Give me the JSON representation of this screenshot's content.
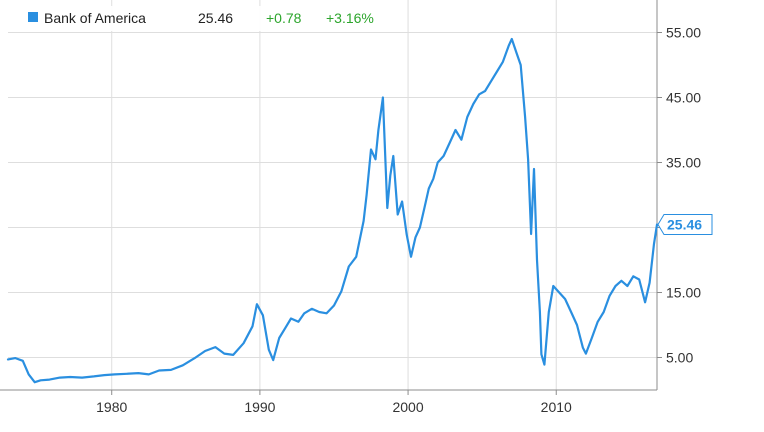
{
  "legend": {
    "series_name": "Bank of America",
    "last_value": "25.46",
    "change_abs": "+0.78",
    "change_pct": "+3.16%"
  },
  "colors": {
    "series": "#2a8fe0",
    "positive": "#2ca52c",
    "grid": "#dedede",
    "axis": "#8c8c8c",
    "text": "#333333"
  },
  "chart_data": {
    "type": "line",
    "title": "",
    "xlabel": "",
    "ylabel": "",
    "xlim": [
      1973.0,
      2016.8
    ],
    "ylim": [
      0,
      60
    ],
    "x_ticks": [
      1980,
      1990,
      2000,
      2010
    ],
    "x_tick_labels": [
      "1980",
      "1990",
      "2000",
      "2010"
    ],
    "y_ticks": [
      5,
      15,
      25,
      35,
      45,
      55
    ],
    "y_tick_labels": [
      "5.00",
      "15.00",
      "25.00",
      "35.00",
      "45.00",
      "55.00"
    ],
    "grid": true,
    "legend_position": "top-left",
    "current_value_label": "25.46",
    "series": [
      {
        "name": "Bank of America",
        "x": [
          1973.0,
          1973.5,
          1974.0,
          1974.4,
          1974.8,
          1975.2,
          1975.8,
          1976.5,
          1977.2,
          1978.0,
          1978.8,
          1979.5,
          1980.2,
          1981.0,
          1981.8,
          1982.5,
          1983.2,
          1984.0,
          1984.8,
          1985.6,
          1986.3,
          1987.0,
          1987.6,
          1988.2,
          1988.9,
          1989.5,
          1989.8,
          1990.2,
          1990.6,
          1990.9,
          1991.3,
          1991.7,
          1992.1,
          1992.6,
          1993.0,
          1993.5,
          1994.0,
          1994.5,
          1995.0,
          1995.5,
          1996.0,
          1996.5,
          1997.0,
          1997.2,
          1997.5,
          1997.8,
          1998.0,
          1998.3,
          1998.6,
          1998.8,
          1999.0,
          1999.3,
          1999.6,
          1999.9,
          2000.2,
          2000.5,
          2000.8,
          2001.1,
          2001.4,
          2001.7,
          2002.0,
          2002.4,
          2002.8,
          2003.2,
          2003.6,
          2004.0,
          2004.4,
          2004.8,
          2005.2,
          2005.6,
          2006.0,
          2006.4,
          2006.8,
          2007.0,
          2007.3,
          2007.6,
          2007.9,
          2008.1,
          2008.3,
          2008.5,
          2008.7,
          2008.9,
          2009.0,
          2009.2,
          2009.5,
          2009.8,
          2010.2,
          2010.6,
          2011.0,
          2011.4,
          2011.8,
          2012.0,
          2012.4,
          2012.8,
          2013.2,
          2013.6,
          2014.0,
          2014.4,
          2014.8,
          2015.2,
          2015.6,
          2016.0,
          2016.3,
          2016.6,
          2016.8
        ],
        "values": [
          4.7,
          4.9,
          4.5,
          2.4,
          1.2,
          1.5,
          1.6,
          1.9,
          2.0,
          1.9,
          2.1,
          2.3,
          2.4,
          2.5,
          2.6,
          2.4,
          3.0,
          3.1,
          3.8,
          4.9,
          6.0,
          6.6,
          5.6,
          5.4,
          7.2,
          9.8,
          13.2,
          11.5,
          6.2,
          4.6,
          8.0,
          9.5,
          11.0,
          10.5,
          11.8,
          12.5,
          12.0,
          11.8,
          13.0,
          15.2,
          19.0,
          20.5,
          26.0,
          30.0,
          37.0,
          35.5,
          40.0,
          45.0,
          28.0,
          33.0,
          36.0,
          27.0,
          29.0,
          24.0,
          20.5,
          23.5,
          25.0,
          28.0,
          31.0,
          32.5,
          35.0,
          36.0,
          38.0,
          40.0,
          38.5,
          42.0,
          44.0,
          45.5,
          46.0,
          47.5,
          49.0,
          50.5,
          53.0,
          54.0,
          52.0,
          50.0,
          42.0,
          35.5,
          24.0,
          34.0,
          20.0,
          12.0,
          5.5,
          3.9,
          12.0,
          16.0,
          15.0,
          14.0,
          12.0,
          10.0,
          6.5,
          5.6,
          8.0,
          10.5,
          12.0,
          14.5,
          16.0,
          16.8,
          16.0,
          17.5,
          17.0,
          13.5,
          16.5,
          22.5,
          25.46
        ]
      }
    ]
  }
}
